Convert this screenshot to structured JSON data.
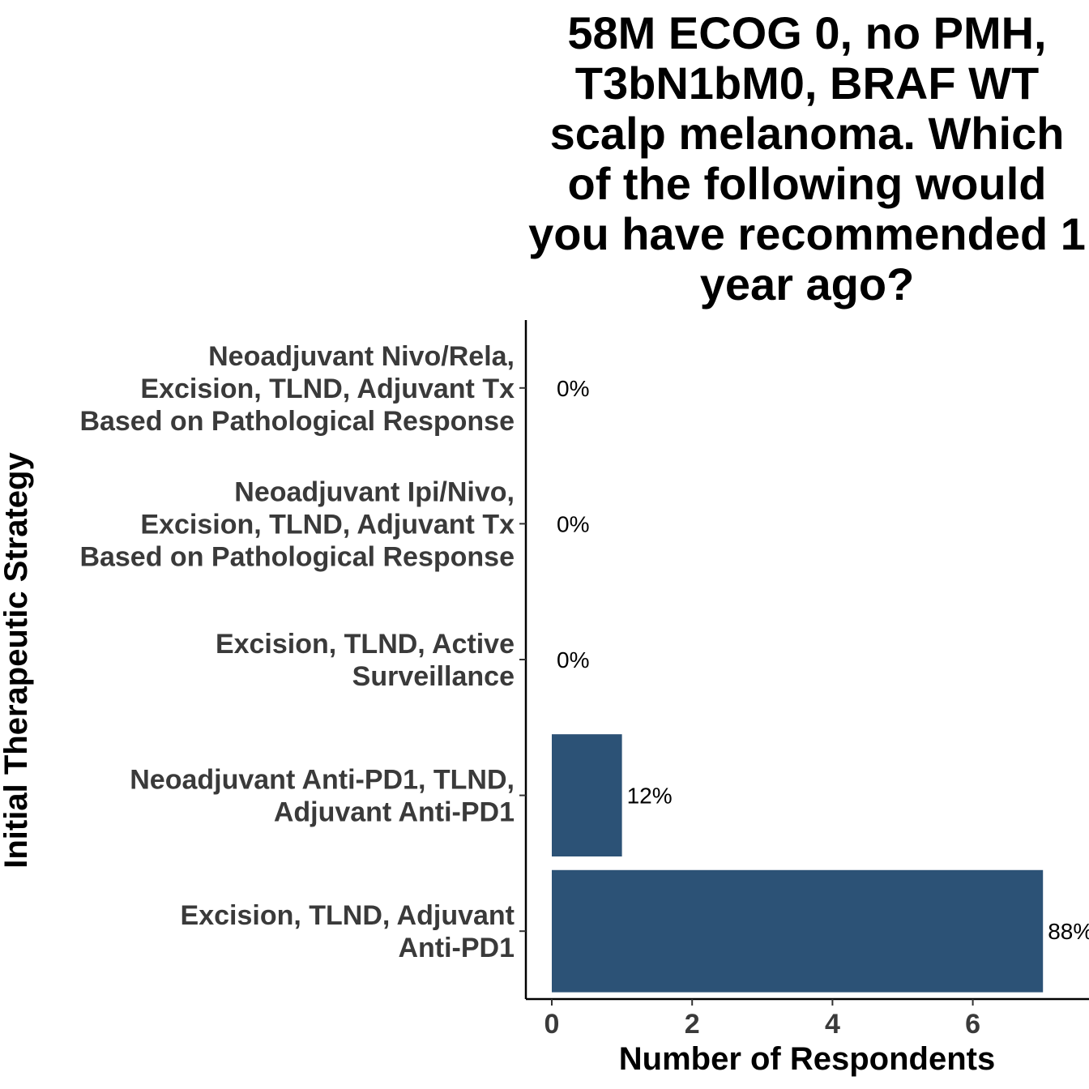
{
  "chart_data": {
    "type": "bar",
    "orientation": "horizontal",
    "title": "58M ECOG 0, no PMH, T3bN1bM0, BRAF WT scalp melanoma. Which of the following would you have recommended 1 year ago?",
    "title_lines": [
      "58M ECOG 0, no PMH,",
      "T3bN1bM0, BRAF WT",
      "scalp melanoma. Which",
      "of the following would",
      "you have recommended 1",
      "year ago?"
    ],
    "xlabel": "Number of Respondents",
    "ylabel": "Initial Therapeutic Strategy",
    "xlim": [
      0,
      7.7
    ],
    "x_ticks": [
      0,
      2,
      4,
      6
    ],
    "bar_color": "#2c5276",
    "grid": false,
    "categories": [
      [
        "Neoadjuvant Nivo/Rela,",
        "Excision, TLND, Adjuvant Tx",
        "Based on Pathological Response"
      ],
      [
        "Neoadjuvant Ipi/Nivo,",
        "Excision, TLND, Adjuvant Tx",
        "Based on Pathological Response"
      ],
      [
        "Excision, TLND, Active",
        "Surveillance"
      ],
      [
        "Neoadjuvant Anti-PD1, TLND,",
        "Adjuvant Anti-PD1"
      ],
      [
        "Excision, TLND, Adjuvant",
        "Anti-PD1"
      ]
    ],
    "values": [
      0,
      0,
      0,
      1,
      7
    ],
    "data_labels": [
      "0%",
      "0%",
      "0%",
      "12%",
      "88%"
    ]
  }
}
